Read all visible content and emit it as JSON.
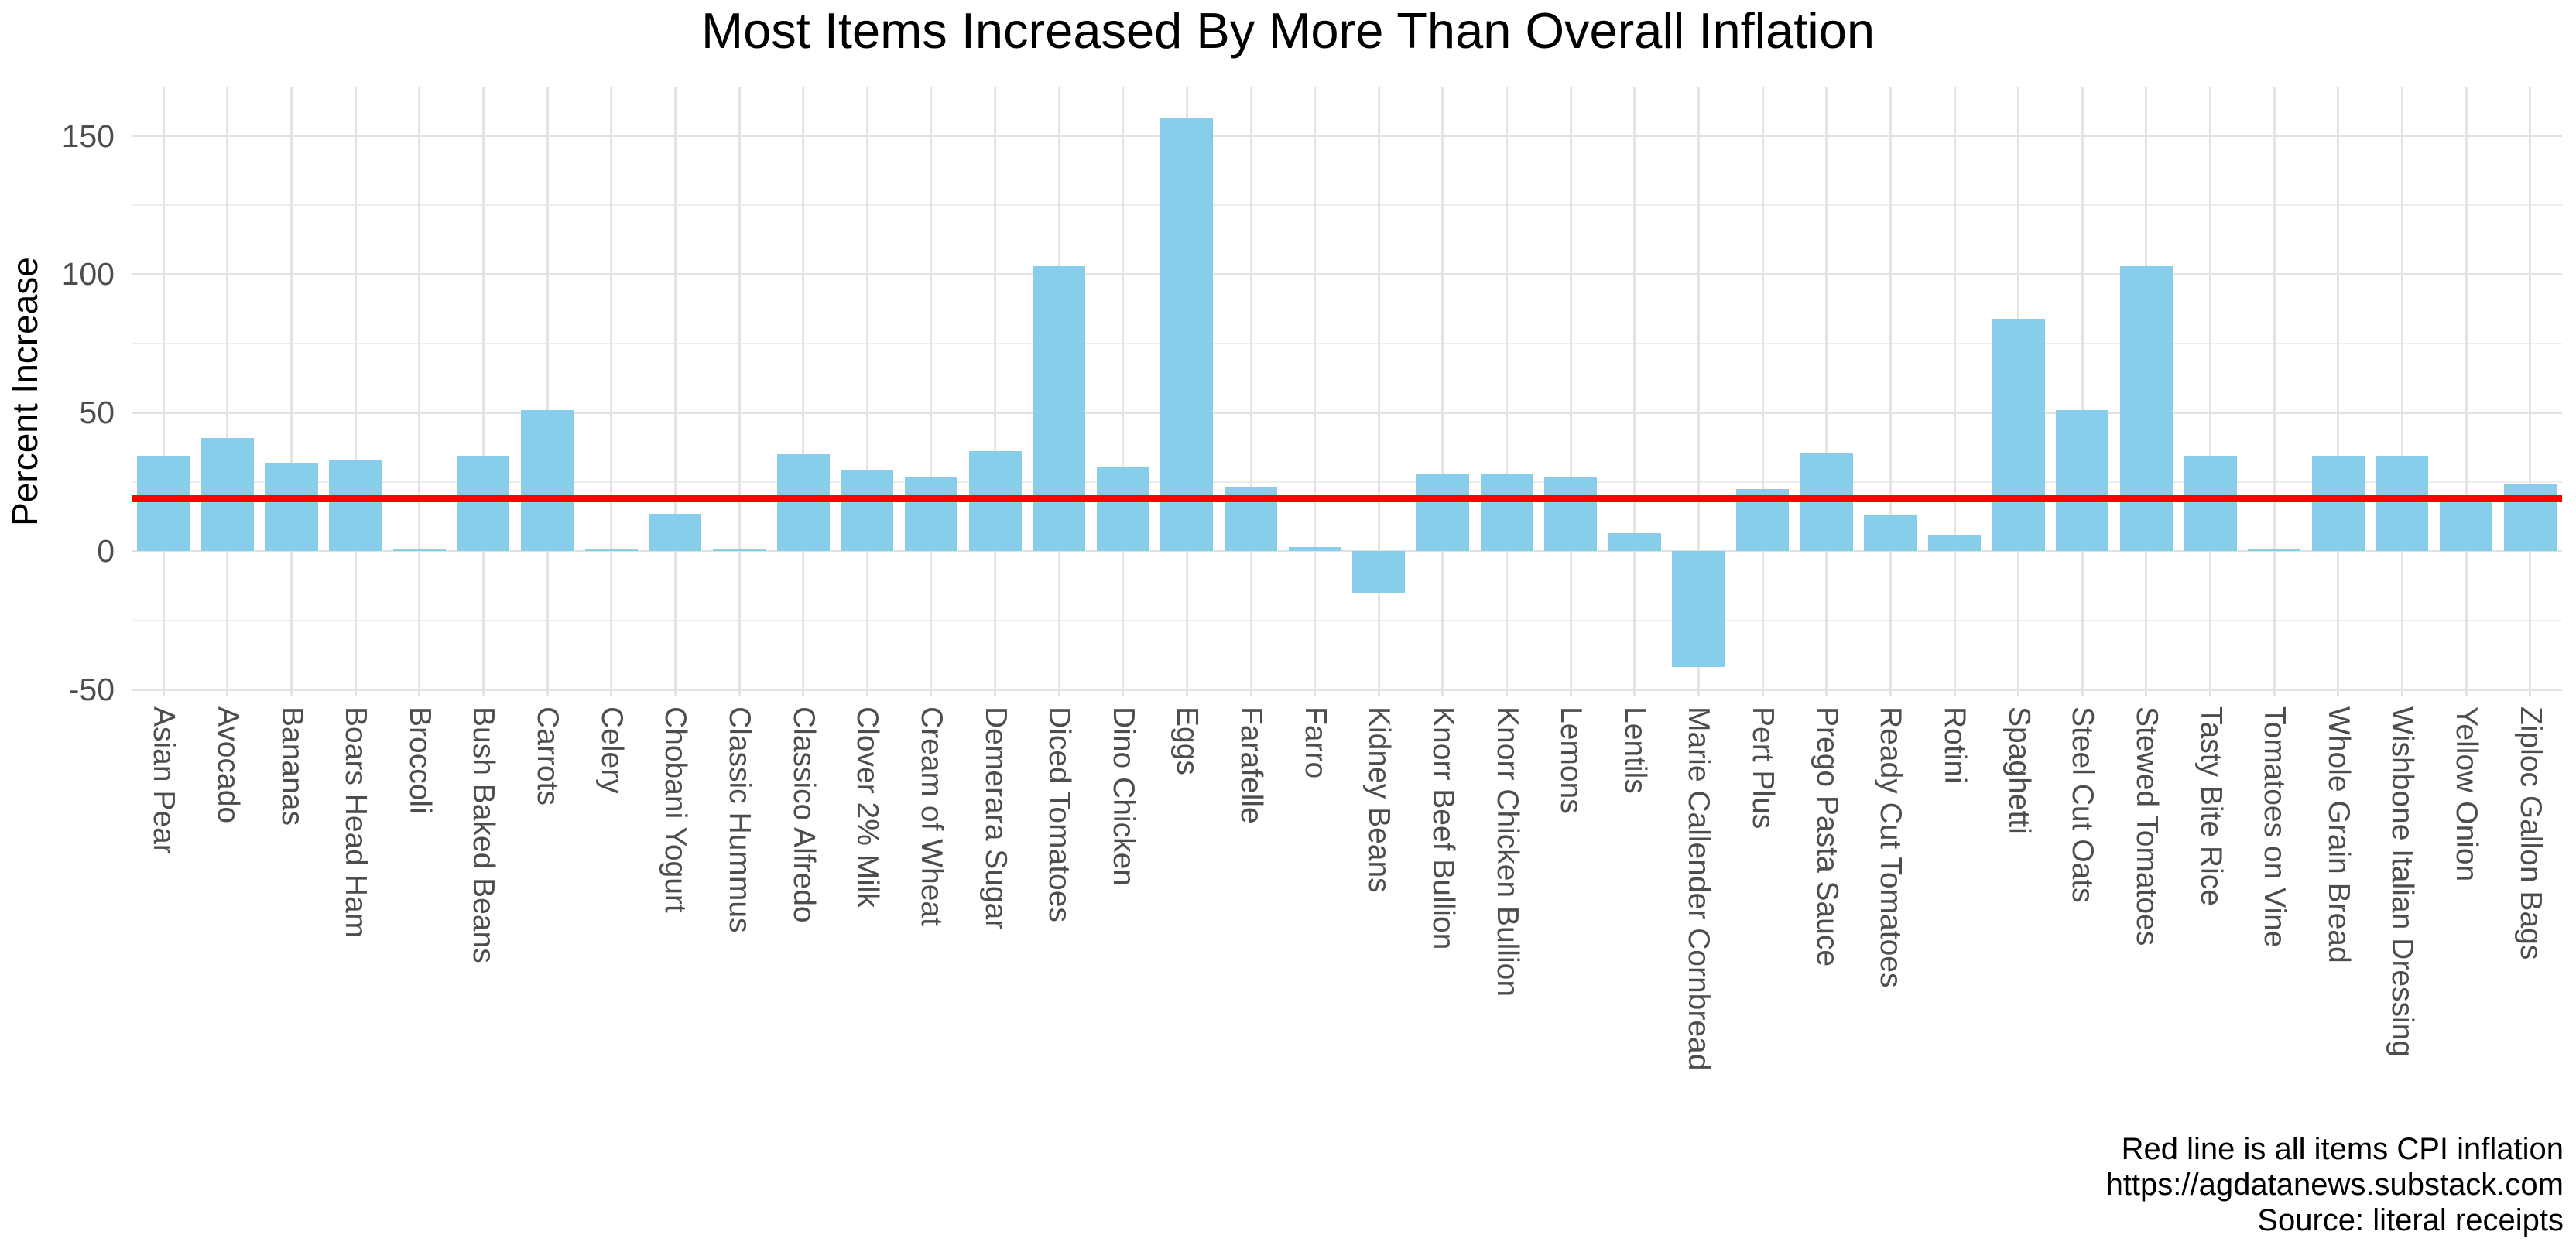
{
  "title": "Most Items Increased By More Than Overall Inflation",
  "y_axis": {
    "label": "Percent Increase",
    "tick_labels": [
      "150",
      "100",
      "50",
      "0",
      "-50"
    ]
  },
  "caption": {
    "line1": "Red line is all items CPI inflation",
    "line2": "https://agdatanews.substack.com",
    "line3": "Source: literal receipts"
  },
  "colors": {
    "bar": "#87CEEB",
    "reference_line": "#FF0000",
    "grid_major": "#e2e2e2",
    "grid_minor": "#ededed",
    "tick_text": "#4d4d4d"
  },
  "chart_data": {
    "type": "bar",
    "title": "Most Items Increased By More Than Overall Inflation",
    "xlabel": "",
    "ylabel": "Percent Increase",
    "categories": [
      "Asian Pear",
      "Avocado",
      "Bananas",
      "Boars Head Ham",
      "Broccoli",
      "Bush Baked Beans",
      "Carrots",
      "Celery",
      "Chobani Yogurt",
      "Classic Hummus",
      "Classico Alfredo",
      "Clover 2% Milk",
      "Cream of Wheat",
      "Demerara Sugar",
      "Diced Tomatoes",
      "Dino Chicken",
      "Eggs",
      "Farafelle",
      "Farro",
      "Kidney Beans",
      "Knorr Beef Bullion",
      "Knorr Chicken Bullion",
      "Lemons",
      "Lentils",
      "Marie Callender Cornbread",
      "Pert Plus",
      "Prego Pasta Sauce",
      "Ready Cut Tomatoes",
      "Rotini",
      "Spaghetti",
      "Steel Cut Oats",
      "Stewed Tomatoes",
      "Tasty Bite Rice",
      "Tomatoes on Vine",
      "Whole Grain Bread",
      "Wishbone Italian Dressing",
      "Yellow Onion",
      "Ziploc Gallon Bags"
    ],
    "values": [
      34.5,
      41,
      32,
      33,
      1,
      34.5,
      51,
      1,
      13.5,
      1,
      35,
      29,
      26.5,
      36,
      103,
      30.5,
      156.5,
      23,
      1.5,
      -15,
      28,
      28,
      27,
      6.5,
      -42,
      22.5,
      35.5,
      13,
      6,
      84,
      51,
      103,
      34.5,
      1,
      34.5,
      34.5,
      18,
      24
    ],
    "ylim": [
      -52.5,
      167.5
    ],
    "y_ticks": [
      150,
      100,
      50,
      0,
      -50
    ],
    "y_minor_gridlines": [
      125,
      75,
      25,
      -25
    ],
    "grid": true,
    "legend": false,
    "reference_line": {
      "value": 18.8,
      "meaning": "Red line is all items CPI inflation"
    }
  }
}
